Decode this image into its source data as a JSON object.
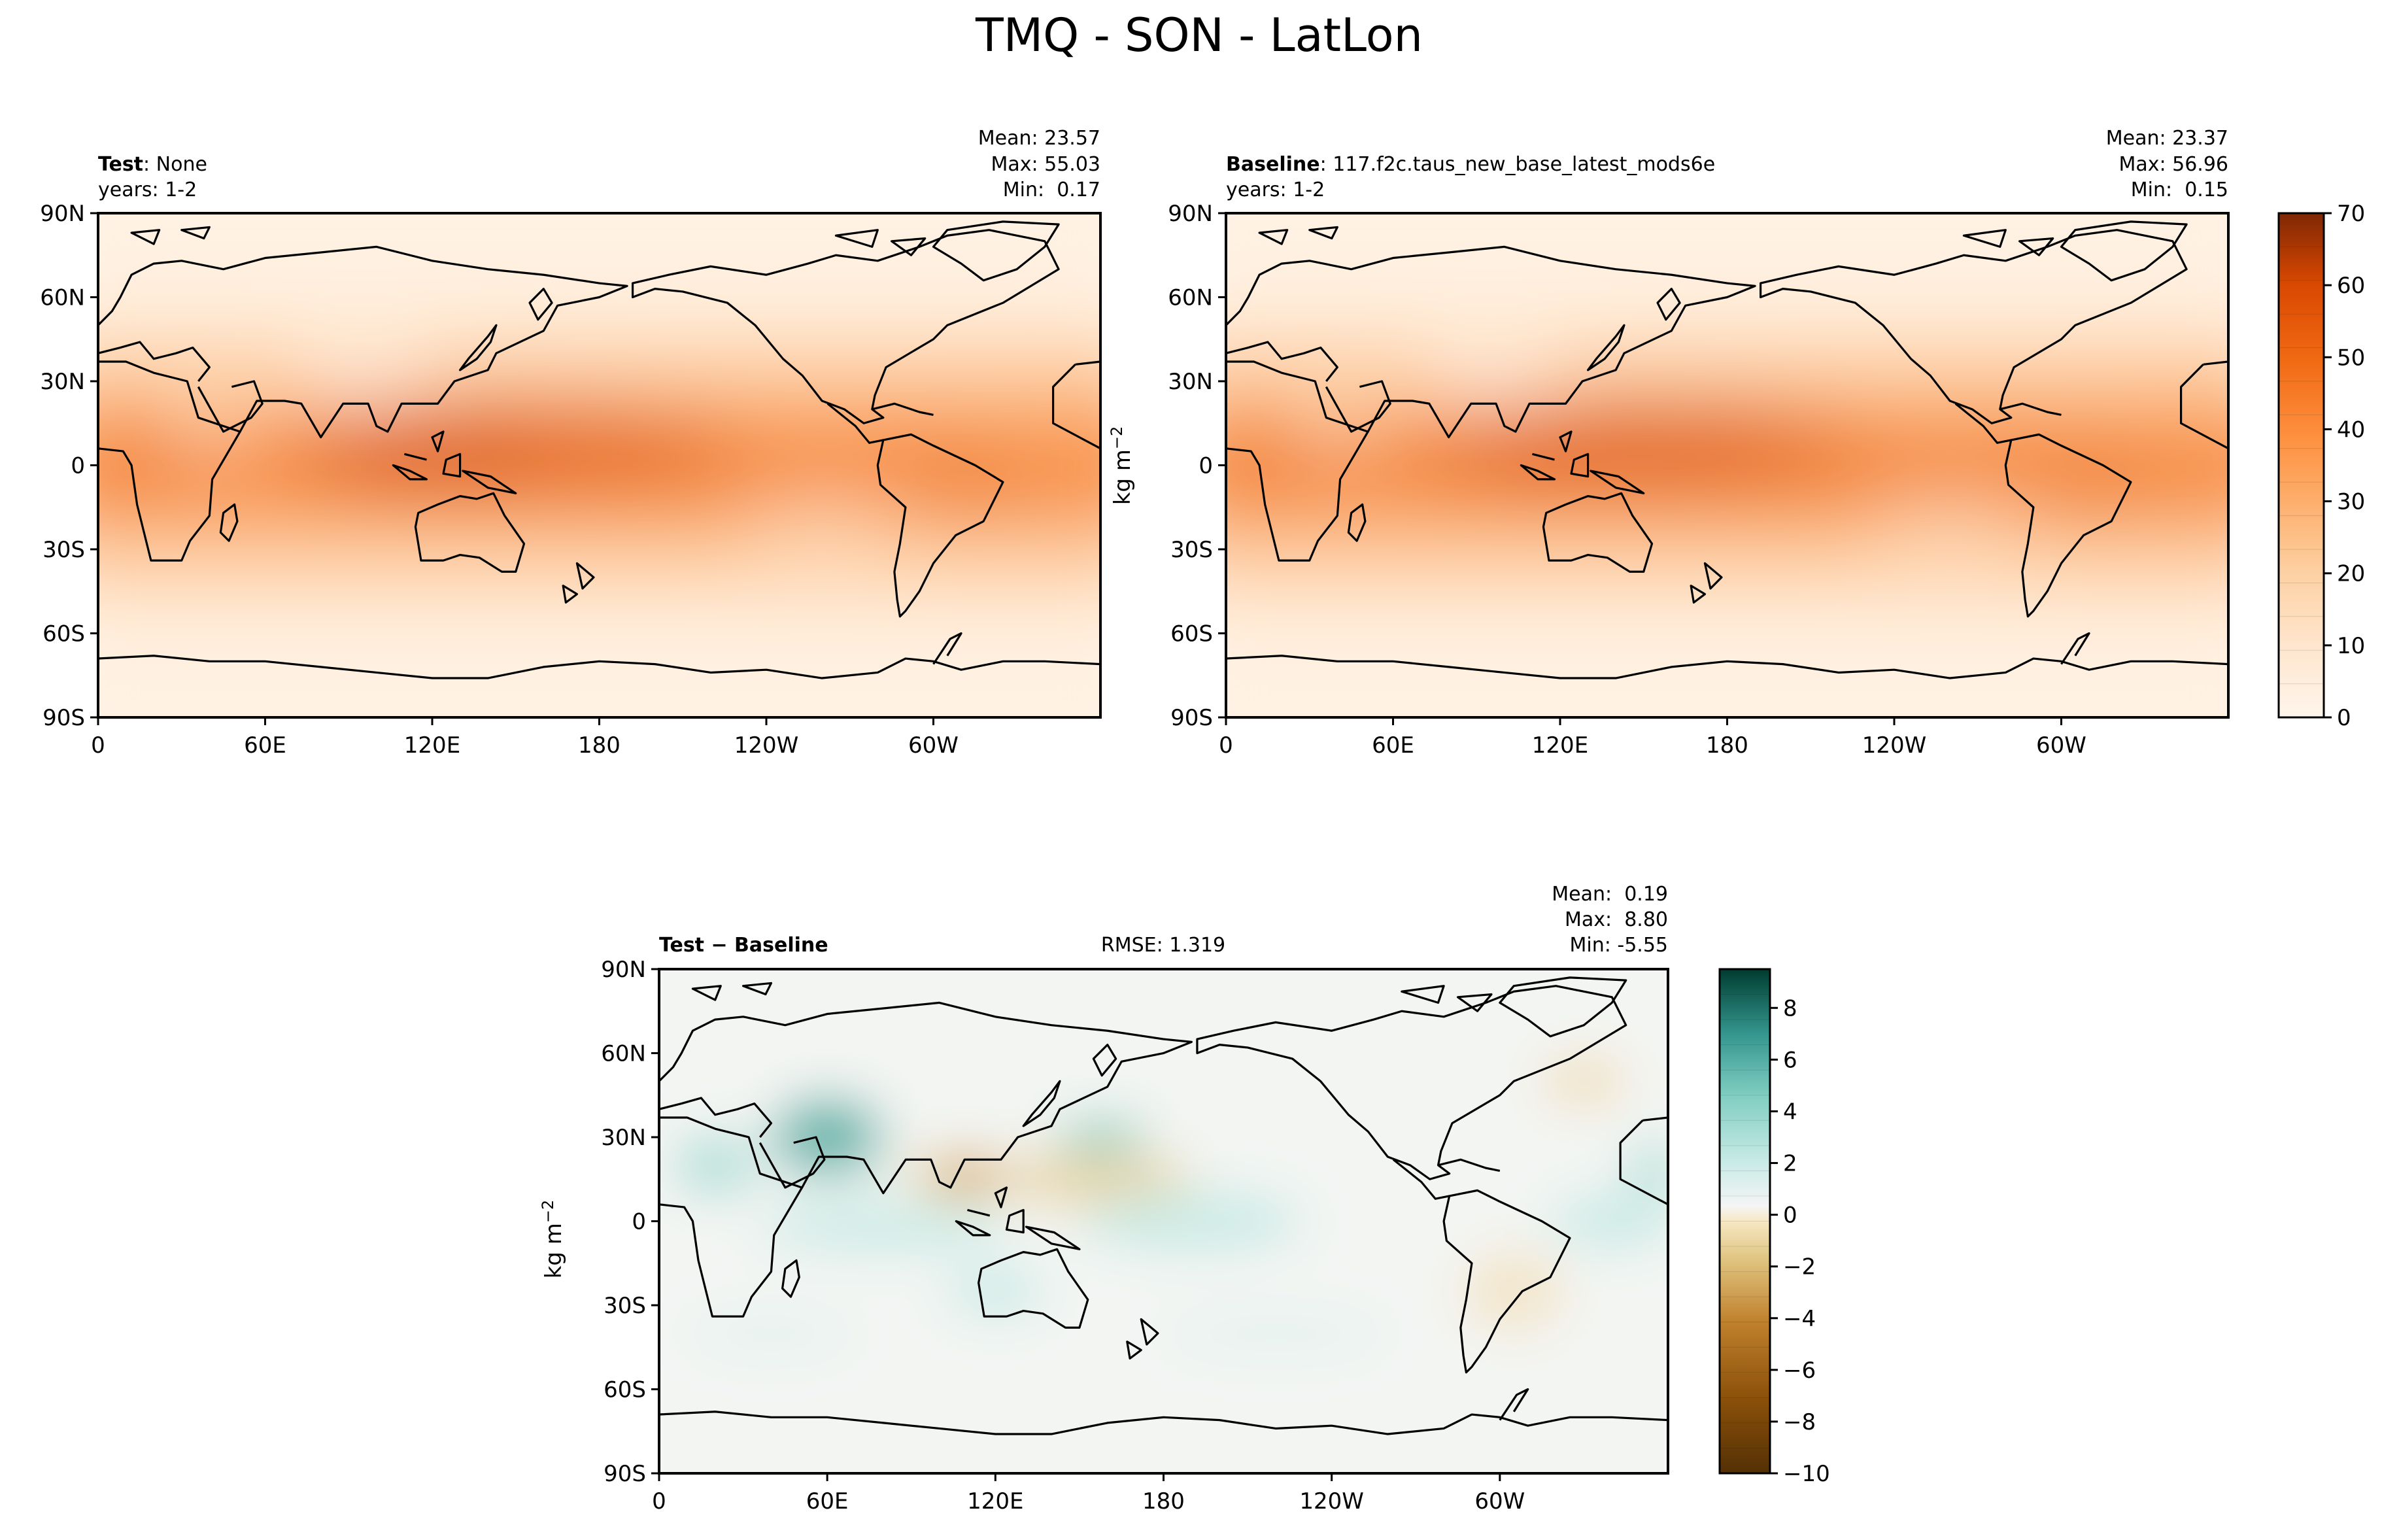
{
  "figure": {
    "title": "TMQ - SON - LatLon"
  },
  "panels": [
    {
      "label_bold": "Test",
      "label_rest": ": None",
      "years": "years: 1-2",
      "stats": [
        "Mean: 23.57",
        "Max: 55.03",
        "Min:  0.17"
      ],
      "colormap": "Oranges",
      "shared_colorbar": true
    },
    {
      "label_bold": "Baseline",
      "label_rest": ": 117.f2c.taus_new_base_latest_mods6e",
      "years": "years: 1-2",
      "stats": [
        "Mean: 23.37",
        "Max: 56.96",
        "Min:  0.15"
      ],
      "colormap": "Oranges",
      "shared_colorbar": true
    },
    {
      "label_bold": "Test − Baseline",
      "center_label": "RMSE: 1.319",
      "stats": [
        "Mean:  0.19",
        "Max:  8.80",
        "Min: -5.55"
      ],
      "colormap": "BrBG",
      "shared_colorbar": false
    }
  ],
  "colorbars": [
    {
      "unit": "kg m",
      "unit_sup": "−2",
      "ticks": [
        "0",
        "10",
        "20",
        "30",
        "40",
        "50",
        "60",
        "70"
      ],
      "levels": 15,
      "colors": [
        "#fff5eb",
        "#feead5",
        "#fddfbe",
        "#fdd0a3",
        "#fdbe85",
        "#fdac67",
        "#fd984c",
        "#f98436",
        "#f26f22",
        "#e65c12",
        "#d84a07",
        "#c43f03",
        "#b03603",
        "#9b2f04",
        "#7f2704"
      ]
    },
    {
      "unit": "kg m",
      "unit_sup": "−2",
      "ticks": [
        "−10",
        "−8",
        "−6",
        "−4",
        "−2",
        "0",
        "2",
        "4",
        "6",
        "8"
      ],
      "levels": 20,
      "colors": [
        "#543005",
        "#6f4109",
        "#8c510a",
        "#a86a1d",
        "#bf812d",
        "#d1a55c",
        "#dfc27d",
        "#ead7ab",
        "#f6e8c3",
        "#f6f2e6",
        "#eef5f4",
        "#c7eae5",
        "#a6dcd4",
        "#80cdc1",
        "#5fb4aa",
        "#35978f",
        "#1c8078",
        "#01665e",
        "#01564f",
        "#003c30"
      ]
    }
  ],
  "axes": {
    "y_ticks": [
      "90N",
      "60N",
      "30N",
      "0",
      "30S",
      "60S",
      "90S"
    ],
    "x_ticks": [
      "0",
      "60E",
      "120E",
      "180",
      "120W",
      "60W"
    ]
  },
  "chart_data": [
    {
      "type": "heatmap",
      "title": "Test : None",
      "variable": "TMQ",
      "units": "kg m-2",
      "x_range": [
        0,
        360
      ],
      "y_range": [
        -90,
        90
      ],
      "color_range": [
        0,
        70
      ],
      "statistics": {
        "mean": 23.57,
        "max": 55.03,
        "min": 0.17
      }
    },
    {
      "type": "heatmap",
      "title": "Baseline : 117.f2c.taus_new_base_latest_mods6e",
      "variable": "TMQ",
      "units": "kg m-2",
      "x_range": [
        0,
        360
      ],
      "y_range": [
        -90,
        90
      ],
      "color_range": [
        0,
        70
      ],
      "statistics": {
        "mean": 23.37,
        "max": 56.96,
        "min": 0.15
      }
    },
    {
      "type": "heatmap",
      "title": "Test − Baseline",
      "units": "kg m-2",
      "x_range": [
        0,
        360
      ],
      "y_range": [
        -90,
        90
      ],
      "color_range": [
        -10,
        9.5
      ],
      "statistics": {
        "mean": 0.19,
        "max": 8.8,
        "min": -5.55,
        "rmse": 1.319
      }
    }
  ]
}
